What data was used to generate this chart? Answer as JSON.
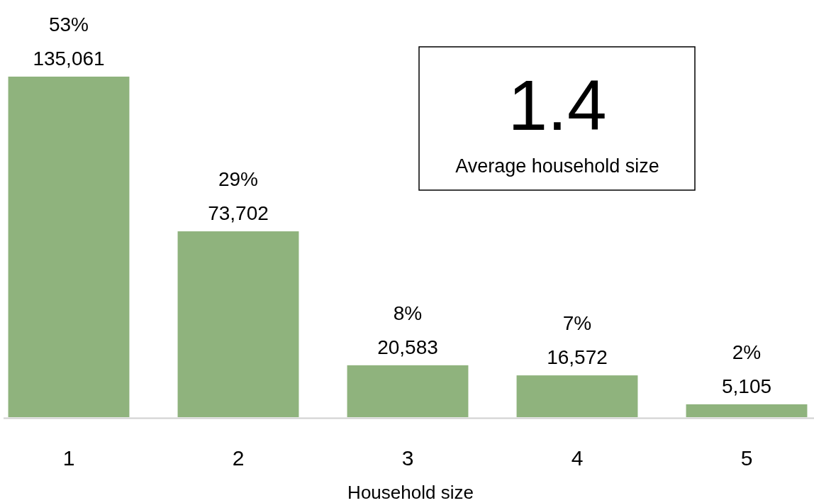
{
  "chart_data": {
    "type": "bar",
    "xlabel": "Household size",
    "categories": [
      "1",
      "2",
      "3",
      "4",
      "5"
    ],
    "values": [
      135061,
      73702,
      20583,
      16572,
      5105
    ],
    "value_labels": [
      "53%\n135,061",
      "29%\n73,702",
      "8%\n20,583",
      "7%\n16,572",
      "2%\n5,105"
    ],
    "color": "#8fb37d",
    "annotations": [
      "1.4",
      "Average household size"
    ],
    "tick_labels": "x",
    "grid": false
  }
}
